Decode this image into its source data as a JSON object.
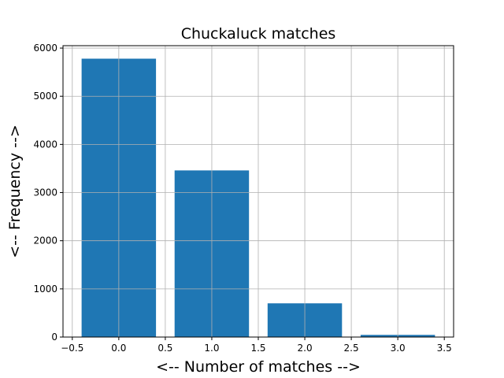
{
  "chart_data": {
    "type": "bar",
    "title": "Chuckaluck matches",
    "xlabel": "<-- Number of matches -->",
    "ylabel": "<-- Frequency -->",
    "x": [
      0,
      1,
      2,
      3
    ],
    "values": [
      5780,
      3460,
      700,
      45
    ],
    "bar_width": 0.8,
    "xlim": [
      -0.6,
      3.6
    ],
    "ylim": [
      0,
      6050
    ],
    "xticks": [
      -0.5,
      0.0,
      0.5,
      1.0,
      1.5,
      2.0,
      2.5,
      3.0,
      3.5
    ],
    "xtick_labels": [
      "−0.5",
      "0.0",
      "0.5",
      "1.0",
      "1.5",
      "2.0",
      "2.5",
      "3.0",
      "3.5"
    ],
    "yticks": [
      0,
      1000,
      2000,
      3000,
      4000,
      5000,
      6000
    ],
    "ytick_labels": [
      "0",
      "1000",
      "2000",
      "3000",
      "4000",
      "5000",
      "6000"
    ],
    "grid": true,
    "bar_color": "#1f77b4",
    "grid_color": "#b0b0b0"
  }
}
